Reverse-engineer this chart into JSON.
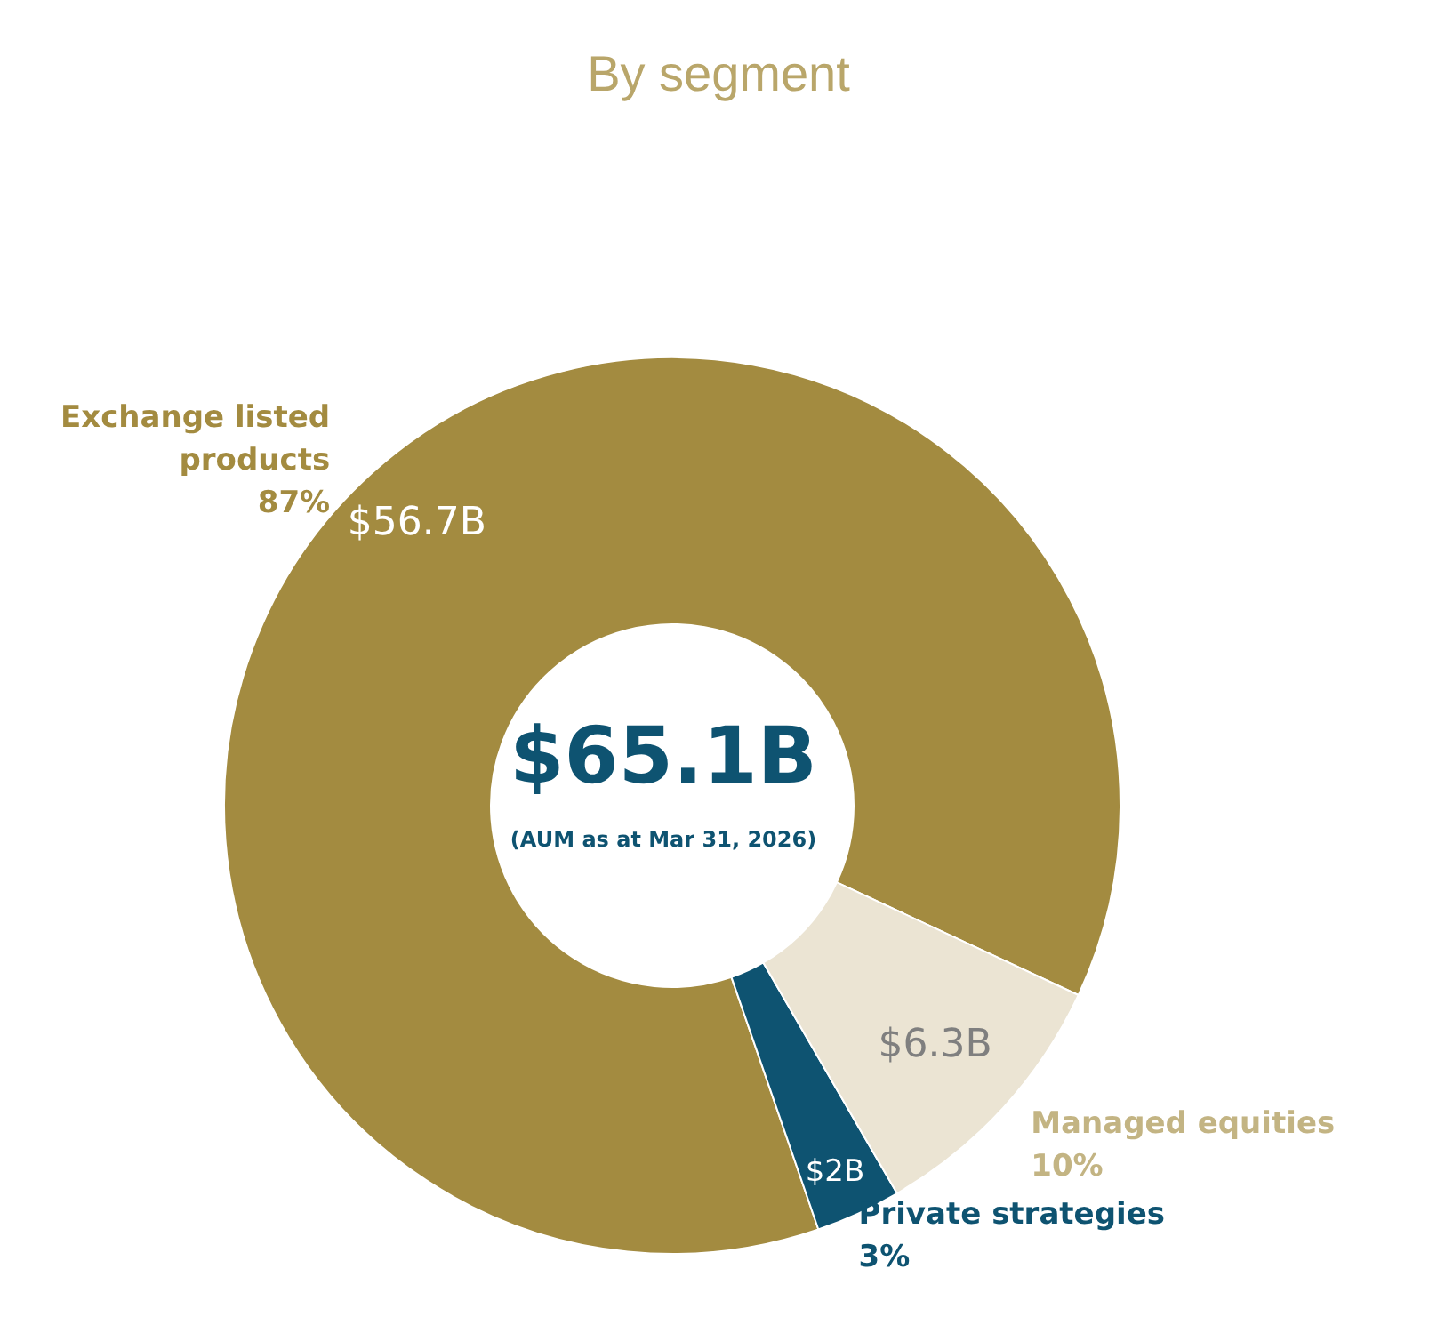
{
  "chart_data": {
    "type": "donut",
    "title": "By segment",
    "categories": [
      "Exchange listed products",
      "Private strategies",
      "Managed equities"
    ],
    "values": [
      56.7,
      2,
      6.3
    ],
    "colors": [
      "#a38b40",
      "#0e5371",
      "#ebe4d3"
    ],
    "value_labels": [
      "$56.7B",
      "$2B",
      "$6.3B"
    ],
    "annotations": [
      "$65.1B",
      "(AUM as at Mar 31, 2026)",
      {
        "text": "87%",
        "x": "Exchange listed products"
      },
      {
        "text": "3%",
        "x": "Private strategies"
      },
      {
        "text": "10%",
        "x": "Managed equities"
      }
    ],
    "legend": false
  }
}
